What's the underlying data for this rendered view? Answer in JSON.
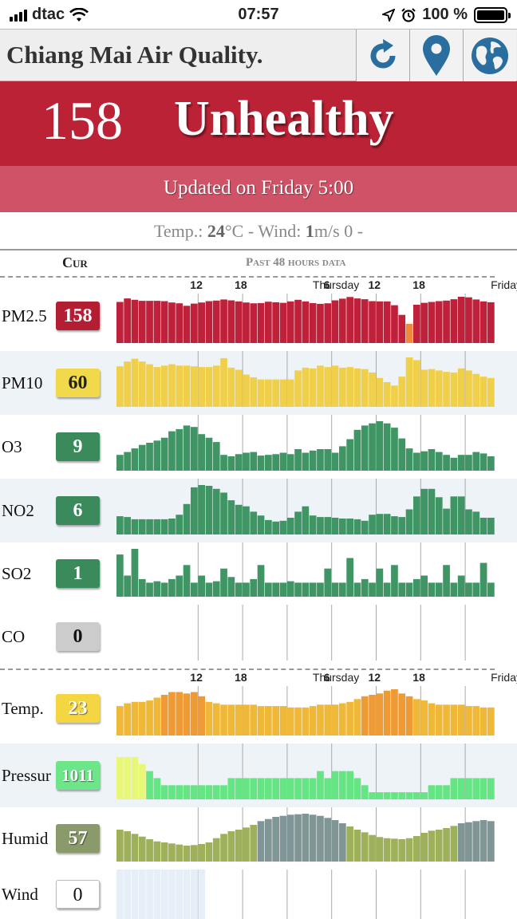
{
  "status_bar": {
    "carrier": "dtac",
    "time": "07:57",
    "battery": "100 %"
  },
  "header": {
    "title": "Chiang Mai Air Quality."
  },
  "icons": {
    "refresh": "refresh-icon",
    "location": "map-pin-icon",
    "globe": "globe-icon"
  },
  "aqi": {
    "value": "158",
    "label": "Unhealthy",
    "color": "#bc2236"
  },
  "updated": "Updated on Friday 5:00",
  "weather": {
    "temp_label": "Temp.:",
    "temp_value": "24",
    "temp_unit": "°C",
    "wind_label": "- Wind:",
    "wind_value": "1",
    "wind_unit": "m/s 0 -"
  },
  "table_header": {
    "current": "Cur",
    "past": "Past 48 hours data"
  },
  "axis_labels": [
    {
      "text": "12",
      "hour": 11
    },
    {
      "text": "18",
      "hour": 17
    },
    {
      "text": "Thursday",
      "hour": 23
    },
    {
      "text": "6",
      "hour": 29
    },
    {
      "text": "12",
      "hour": 35
    },
    {
      "text": "18",
      "hour": 41
    },
    {
      "text": "Friday",
      "hour": 47
    }
  ],
  "rows": [
    {
      "name": "PM2.5",
      "current": "158",
      "badge_color": "#b31e33",
      "badge_text_color": "#ffffff",
      "bar_color": "#c0213a",
      "values": [
        150,
        163,
        158,
        154,
        154,
        154,
        153,
        148,
        145,
        136,
        144,
        148,
        153,
        155,
        159,
        156,
        152,
        148,
        145,
        146,
        151,
        149,
        147,
        152,
        158,
        152,
        146,
        143,
        145,
        156,
        162,
        168,
        163,
        160,
        153,
        152,
        152,
        138,
        103,
        70,
        140,
        147,
        150,
        153,
        155,
        160,
        169,
        167,
        159,
        152,
        149
      ]
    },
    {
      "name": "PM10",
      "current": "60",
      "badge_color": "#f2d94c",
      "badge_text_color": "#222222",
      "bar_color": "#f0d04a",
      "values": [
        59,
        66,
        70,
        66,
        62,
        58,
        60,
        62,
        60,
        60,
        59,
        58,
        58,
        60,
        71,
        57,
        54,
        47,
        43,
        40,
        40,
        40,
        40,
        40,
        53,
        57,
        56,
        60,
        58,
        60,
        57,
        58,
        56,
        55,
        50,
        42,
        36,
        31,
        44,
        72,
        68,
        54,
        55,
        53,
        51,
        50,
        56,
        53,
        48,
        44,
        42
      ]
    },
    {
      "name": "O3",
      "current": "9",
      "badge_color": "#3a8a5c",
      "badge_text_color": "#ffffff",
      "bar_color": "#3f9563",
      "values": [
        22,
        26,
        31,
        36,
        39,
        42,
        46,
        55,
        58,
        63,
        61,
        51,
        46,
        40,
        22,
        20,
        23,
        25,
        26,
        21,
        22,
        23,
        25,
        23,
        30,
        25,
        28,
        30,
        30,
        25,
        34,
        44,
        57,
        63,
        66,
        69,
        66,
        60,
        45,
        31,
        25,
        27,
        30,
        26,
        22,
        18,
        22,
        22,
        26,
        24,
        20
      ]
    },
    {
      "name": "NO2",
      "current": "6",
      "badge_color": "#3a8a5c",
      "badge_text_color": "#ffffff",
      "bar_color": "#3f9563",
      "values": [
        24,
        23,
        20,
        20,
        20,
        20,
        20,
        21,
        26,
        40,
        62,
        65,
        64,
        60,
        55,
        45,
        39,
        37,
        30,
        25,
        19,
        17,
        18,
        22,
        30,
        37,
        25,
        23,
        23,
        22,
        21,
        21,
        20,
        18,
        26,
        27,
        27,
        24,
        23,
        33,
        50,
        60,
        60,
        49,
        34,
        50,
        50,
        33,
        30,
        22,
        22
      ]
    },
    {
      "name": "SO2",
      "current": "1",
      "badge_color": "#3a8a5c",
      "badge_text_color": "#ffffff",
      "bar_color": "#3f9563",
      "values": [
        60,
        30,
        68,
        25,
        20,
        22,
        20,
        25,
        30,
        45,
        20,
        30,
        20,
        22,
        40,
        28,
        20,
        20,
        25,
        45,
        20,
        20,
        20,
        22,
        20,
        20,
        20,
        20,
        40,
        20,
        20,
        55,
        20,
        25,
        20,
        40,
        20,
        45,
        20,
        20,
        25,
        30,
        20,
        20,
        45,
        20,
        30,
        20,
        20,
        48,
        20
      ]
    },
    {
      "name": "CO",
      "current": "0",
      "badge_color": "#cccccc",
      "badge_text_color": "#111111",
      "bar_color": "#dddddd",
      "values": []
    },
    {
      "name": "Temp.",
      "current": "23",
      "badge_color": "#f4d642",
      "badge_text_color": "#ffffff",
      "bar_color": "#f0b838",
      "values": [
        21,
        23,
        24,
        24,
        25,
        27,
        29,
        31,
        31,
        30,
        31,
        28,
        24,
        23,
        22,
        22,
        22,
        22,
        22,
        21,
        21,
        21,
        21,
        20,
        20,
        20,
        21,
        22,
        22,
        22,
        23,
        24,
        26,
        28,
        29,
        30,
        32,
        33,
        30,
        28,
        26,
        25,
        23,
        22,
        22,
        22,
        22,
        21,
        21,
        20,
        20
      ]
    },
    {
      "name": "Pressur",
      "current": "1011",
      "badge_color": "#6de68a",
      "badge_text_color": "#ffffff",
      "bar_color": "#66e584",
      "values": [
        1014,
        1014,
        1014,
        1013,
        1012,
        1011,
        1010,
        1010,
        1010,
        1010,
        1010,
        1010,
        1010,
        1010,
        1010,
        1011,
        1011,
        1011,
        1011,
        1011,
        1011,
        1011,
        1011,
        1011,
        1011,
        1011,
        1011,
        1012,
        1011,
        1012,
        1012,
        1012,
        1011,
        1010,
        1009,
        1009,
        1009,
        1009,
        1009,
        1009,
        1009,
        1009,
        1010,
        1010,
        1010,
        1011,
        1011,
        1011,
        1011,
        1011,
        1011
      ]
    },
    {
      "name": "Humid",
      "current": "57",
      "badge_color": "#8a9a6a",
      "badge_text_color": "#ffffff",
      "bar_color": "#9fb05a",
      "values": [
        60,
        57,
        52,
        47,
        42,
        38,
        36,
        34,
        32,
        30,
        31,
        33,
        36,
        44,
        52,
        57,
        60,
        64,
        69,
        76,
        80,
        84,
        86,
        88,
        89,
        90,
        88,
        86,
        82,
        78,
        72,
        66,
        60,
        55,
        50,
        46,
        44,
        43,
        42,
        44,
        48,
        54,
        58,
        60,
        63,
        67,
        72,
        74,
        76,
        78,
        76
      ]
    },
    {
      "name": "Wind",
      "current": "0",
      "badge_color": "#ffffff",
      "badge_text_color": "#111111",
      "bar_color": "#e6eef8",
      "values": []
    }
  ]
}
